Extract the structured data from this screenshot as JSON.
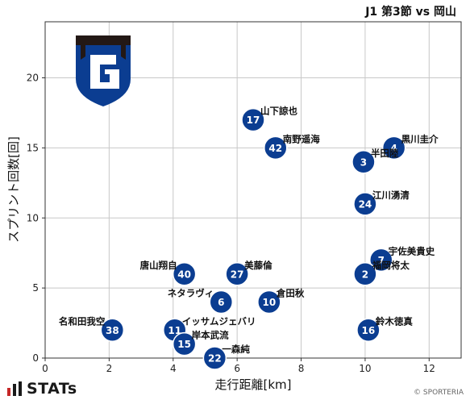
{
  "chart_data": {
    "type": "scatter",
    "title": "J1 第3節 vs 岡山",
    "xlabel": "走行距離[km]",
    "ylabel": "スプリント回数[回]",
    "xlim": [
      0,
      13
    ],
    "ylim": [
      0,
      24
    ],
    "xticks": [
      0,
      2,
      4,
      6,
      8,
      10,
      12
    ],
    "yticks": [
      0,
      5,
      10,
      15,
      20
    ],
    "grid": true,
    "marker_color": "#0b3d91",
    "points": [
      {
        "number": "17",
        "name": "山下諒也",
        "x": 6.5,
        "y": 17,
        "label_side": "right"
      },
      {
        "number": "42",
        "name": "南野遥海",
        "x": 7.2,
        "y": 15,
        "label_side": "right"
      },
      {
        "number": "4",
        "name": "黒川圭介",
        "x": 10.9,
        "y": 15,
        "label_side": "right"
      },
      {
        "number": "3",
        "name": "半田陸",
        "x": 9.95,
        "y": 14,
        "label_side": "right"
      },
      {
        "number": "24",
        "name": "江川湧清",
        "x": 10.0,
        "y": 11,
        "label_side": "right"
      },
      {
        "number": "7",
        "name": "宇佐美貴史",
        "x": 10.5,
        "y": 7,
        "label_side": "right"
      },
      {
        "number": "2",
        "name": "福岡将太",
        "x": 10.0,
        "y": 6,
        "label_side": "right"
      },
      {
        "number": "40",
        "name": "唐山翔自",
        "x": 4.35,
        "y": 6,
        "label_side": "left"
      },
      {
        "number": "27",
        "name": "美藤倫",
        "x": 6.0,
        "y": 6,
        "label_side": "right"
      },
      {
        "number": "6",
        "name": "ネタラヴィ",
        "x": 5.5,
        "y": 4,
        "label_side": "left"
      },
      {
        "number": "10",
        "name": "倉田秋",
        "x": 7.0,
        "y": 4,
        "label_side": "right"
      },
      {
        "number": "38",
        "name": "名和田我空",
        "x": 2.1,
        "y": 2,
        "label_side": "left"
      },
      {
        "number": "11",
        "name": "イッサムジェバリ",
        "x": 4.05,
        "y": 2,
        "label_side": "right"
      },
      {
        "number": "16",
        "name": "鈴木徳真",
        "x": 10.1,
        "y": 2,
        "label_side": "right"
      },
      {
        "number": "15",
        "name": "岸本武流",
        "x": 4.35,
        "y": 1,
        "label_side": "right"
      },
      {
        "number": "22",
        "name": "一森純",
        "x": 5.3,
        "y": 0,
        "label_side": "right"
      }
    ]
  },
  "brand": {
    "name": "STATs",
    "icon": "bar-chart-logo-icon"
  },
  "credit": "© SPORTERIA",
  "team_crest": {
    "icon": "gamba-osaka-crest-icon",
    "colors": [
      "#0b3d91",
      "#231815"
    ]
  }
}
